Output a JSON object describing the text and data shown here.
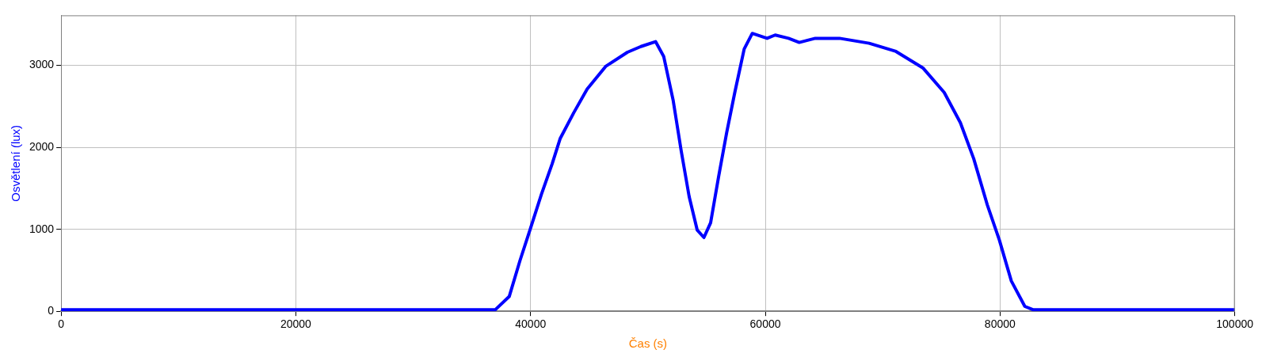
{
  "chart_data": {
    "type": "line",
    "xlabel": "Čas (s)",
    "ylabel": "Osvětlení (lux)",
    "xlim": [
      0,
      100000
    ],
    "xticks": [
      0,
      20000,
      40000,
      60000,
      80000,
      100000
    ],
    "ylim": [
      0,
      3610
    ],
    "yticks": [
      0,
      1000,
      2000,
      3000
    ],
    "grid": true,
    "legend": false,
    "marker": "none",
    "line_style": "solid",
    "series": [
      {
        "color": "#0000ff",
        "x": [
          0,
          37000,
          38180,
          39100,
          40010,
          40930,
          41840,
          42530,
          43670,
          44820,
          46420,
          48250,
          49400,
          50650,
          51340,
          52140,
          52830,
          53510,
          54200,
          54770,
          55340,
          56030,
          56710,
          57400,
          58200,
          58890,
          60150,
          60840,
          61980,
          62890,
          64260,
          66320,
          68840,
          71130,
          73420,
          75240,
          76620,
          77760,
          78910,
          79940,
          80960,
          82110,
          82800,
          100000
        ],
        "values": [
          20,
          20,
          180,
          620,
          1020,
          1430,
          1800,
          2110,
          2420,
          2710,
          2990,
          3160,
          3230,
          3290,
          3110,
          2580,
          1960,
          1400,
          990,
          900,
          1080,
          1650,
          2180,
          2670,
          3200,
          3390,
          3330,
          3370,
          3330,
          3280,
          3330,
          3330,
          3270,
          3170,
          2970,
          2670,
          2300,
          1860,
          1300,
          870,
          370,
          60,
          20,
          20
        ]
      }
    ]
  }
}
